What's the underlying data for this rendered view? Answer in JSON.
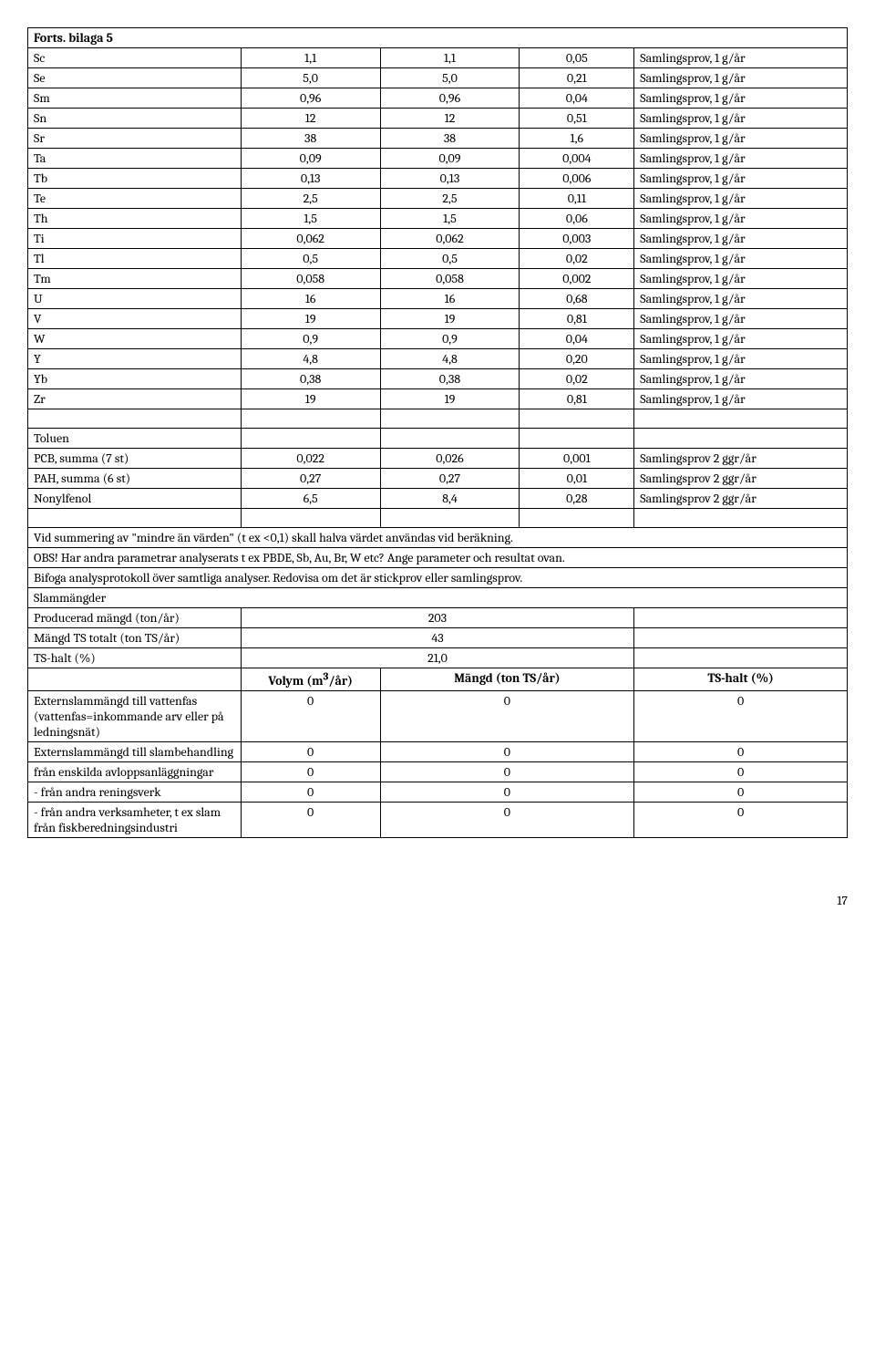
{
  "header": "Forts. bilaga 5",
  "elements": [
    [
      "Sc",
      "1,1",
      "1,1",
      "0,05",
      "Samlingsprov, 1 g/år"
    ],
    [
      "Se",
      "5,0",
      "5,0",
      "0,21",
      "Samlingsprov, 1 g/år"
    ],
    [
      "Sm",
      "0,96",
      "0,96",
      "0,04",
      "Samlingsprov, 1 g/år"
    ],
    [
      "Sn",
      "12",
      "12",
      "0,51",
      "Samlingsprov, 1 g/år"
    ],
    [
      "Sr",
      "38",
      "38",
      "1,6",
      "Samlingsprov, 1 g/år"
    ],
    [
      "Ta",
      "0,09",
      "0,09",
      "0,004",
      "Samlingsprov, 1 g/år"
    ],
    [
      "Tb",
      "0,13",
      "0,13",
      "0,006",
      "Samlingsprov, 1 g/år"
    ],
    [
      "Te",
      "2,5",
      "2,5",
      "0,11",
      "Samlingsprov, 1 g/år"
    ],
    [
      "Th",
      "1,5",
      "1,5",
      "0,06",
      "Samlingsprov, 1 g/år"
    ],
    [
      "Ti",
      "0,062",
      "0,062",
      "0,003",
      "Samlingsprov, 1 g/år"
    ],
    [
      "Tl",
      "0,5",
      "0,5",
      "0,02",
      "Samlingsprov, 1 g/år"
    ],
    [
      "Tm",
      "0,058",
      "0,058",
      "0,002",
      "Samlingsprov, 1 g/år"
    ],
    [
      "U",
      "16",
      "16",
      "0,68",
      "Samlingsprov, 1 g/år"
    ],
    [
      "V",
      "19",
      "19",
      "0,81",
      "Samlingsprov, 1 g/år"
    ],
    [
      "W",
      "0,9",
      "0,9",
      "0,04",
      "Samlingsprov, 1 g/år"
    ],
    [
      "Y",
      "4,8",
      "4,8",
      "0,20",
      "Samlingsprov, 1 g/år"
    ],
    [
      "Yb",
      "0,38",
      "0,38",
      "0,02",
      "Samlingsprov, 1 g/år"
    ],
    [
      "Zr",
      "19",
      "19",
      "0,81",
      "Samlingsprov, 1 g/år"
    ]
  ],
  "toluen": "Toluen",
  "compounds": [
    [
      "PCB, summa (7 st)",
      "0,022",
      "0,026",
      "0,001",
      "Samlingsprov 2 ggr/år"
    ],
    [
      "PAH, summa (6 st)",
      "0,27",
      "0,27",
      "0,01",
      "Samlingsprov 2 ggr/år"
    ],
    [
      "Nonylfenol",
      "6,5",
      "8,4",
      "0,28",
      "Samlingsprov 2 ggr/år"
    ]
  ],
  "note1": "Vid summering av \"mindre än värden\" (t ex <0,1) skall halva värdet användas vid beräkning.",
  "note2": "OBS! Har andra parametrar analyserats t ex PBDE, Sb, Au, Br, W etc? Ange parameter och resultat ovan.",
  "note3": "Bifoga analysprotokoll över samtliga analyser. Redovisa om det är stickprov eller samlingsprov.",
  "slam_header": "Slammängder",
  "produced_label": "Producerad mängd (ton/år)",
  "produced_value": "203",
  "ts_total_label": "Mängd TS totalt (ton TS/år)",
  "ts_total_value": "43",
  "ts_halt_label": "TS-halt (%)",
  "ts_halt_value": "21,0",
  "col_headers": [
    "Volym (m3/år)",
    "Mängd (ton TS/år)",
    "TS-halt (%)"
  ],
  "extern_rows": [
    [
      "Externslammängd till vattenfas (vattenfas=inkommande arv eller på ledningsnät)",
      "0",
      "0",
      "0"
    ],
    [
      "Externslammängd till slambehandling",
      "0",
      "0",
      "0"
    ],
    [
      "från enskilda avloppsanläggningar",
      "0",
      "0",
      "0"
    ],
    [
      "- från andra reningsverk",
      "0",
      "0",
      "0"
    ],
    [
      "- från andra verksamheter, t ex slam från fiskberedningsindustri",
      "0",
      "0",
      "0"
    ]
  ],
  "page_number": "17"
}
